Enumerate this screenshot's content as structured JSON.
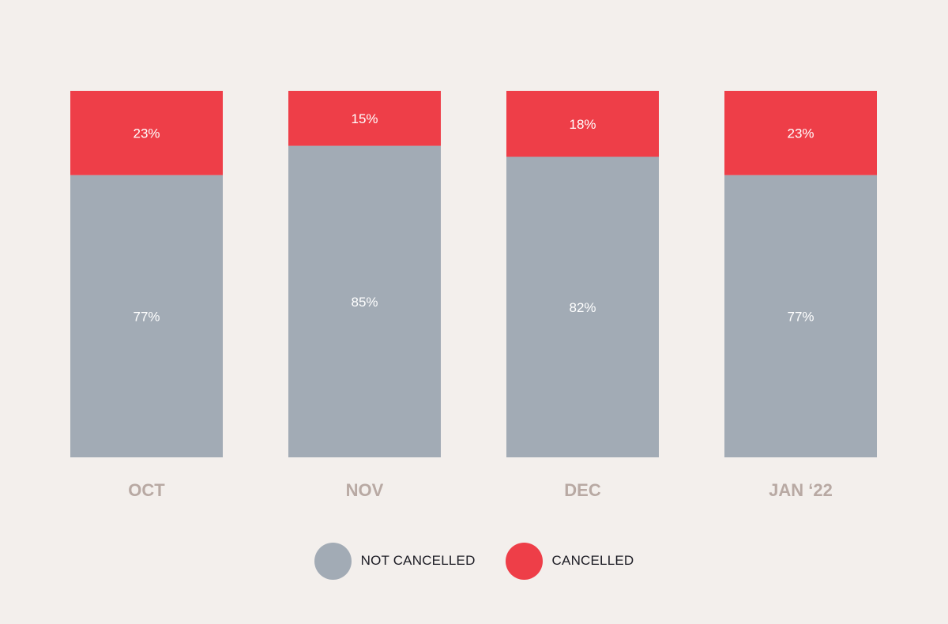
{
  "colors": {
    "background": "#f3efec",
    "not_cancelled": "#a2abb5",
    "cancelled": "#ee3e48",
    "category_text": "#b8a9a3",
    "segment_text": "#ffffff",
    "legend_text": "#1c1c24"
  },
  "chart_data": {
    "type": "bar",
    "stacked": true,
    "orientation": "vertical",
    "categories": [
      "OCT",
      "NOV",
      "DEC",
      "JAN ‘22"
    ],
    "series": [
      {
        "name": "NOT CANCELLED",
        "values": [
          77,
          85,
          82,
          77
        ],
        "labels": [
          "77%",
          "85%",
          "82%",
          "77%"
        ]
      },
      {
        "name": "CANCELLED",
        "values": [
          23,
          15,
          18,
          23
        ],
        "labels": [
          "23%",
          "15%",
          "18%",
          "23%"
        ]
      }
    ],
    "unit": "%",
    "ylim": [
      0,
      100
    ],
    "grid": false,
    "legend_position": "bottom"
  },
  "legend": {
    "items": [
      {
        "label": "NOT CANCELLED",
        "color_key": "not_cancelled"
      },
      {
        "label": "CANCELLED",
        "color_key": "cancelled"
      }
    ]
  }
}
